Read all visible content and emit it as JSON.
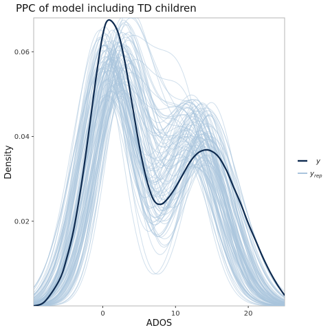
{
  "chart_data": {
    "type": "line",
    "title": "PPC of model including TD children",
    "xlabel": "ADOS",
    "ylabel": "Density",
    "xlim": [
      -9.5,
      25
    ],
    "ylim": [
      0,
      0.068
    ],
    "x_ticks": [
      0,
      10,
      20
    ],
    "y_ticks": [
      0.02,
      0.04,
      0.06
    ],
    "x_tick_labels": [
      "0",
      "10",
      "20"
    ],
    "y_tick_labels": [
      "0.02",
      "0.04",
      "0.06"
    ],
    "grid": false,
    "legend_position": "right",
    "legend": [
      {
        "label": "y",
        "subscript": "",
        "color": "#0d2a4f"
      },
      {
        "label": "y",
        "subscript": "rep",
        "color": "#a9c4dd"
      }
    ],
    "series": [
      {
        "role": "y",
        "color": "#0d2a4f",
        "x": [
          -9.5,
          -8,
          -6,
          -5,
          -4,
          -3,
          -2,
          -1,
          0,
          0.8,
          2,
          3,
          4,
          5,
          6,
          7,
          8,
          9,
          10,
          11,
          12,
          13,
          14,
          15,
          16,
          17,
          18,
          19,
          20,
          21,
          22,
          23,
          24,
          25
        ],
        "y": [
          0.0,
          0.001,
          0.006,
          0.011,
          0.018,
          0.028,
          0.04,
          0.053,
          0.064,
          0.0675,
          0.065,
          0.058,
          0.048,
          0.038,
          0.03,
          0.025,
          0.024,
          0.0255,
          0.028,
          0.031,
          0.034,
          0.036,
          0.0368,
          0.0365,
          0.035,
          0.032,
          0.028,
          0.024,
          0.0195,
          0.0155,
          0.0115,
          0.008,
          0.005,
          0.0025
        ]
      }
    ],
    "rep_band": {
      "role": "y_rep",
      "color": "#a9c4dd",
      "count": 100,
      "peak1_x_range": [
        -0.5,
        3.5
      ],
      "peak1_y_range": [
        0.048,
        0.066
      ],
      "peak2_x_range": [
        11,
        15
      ],
      "peak2_y_range": [
        0.038,
        0.057
      ],
      "trough_y_range": [
        0.022,
        0.04
      ]
    }
  }
}
